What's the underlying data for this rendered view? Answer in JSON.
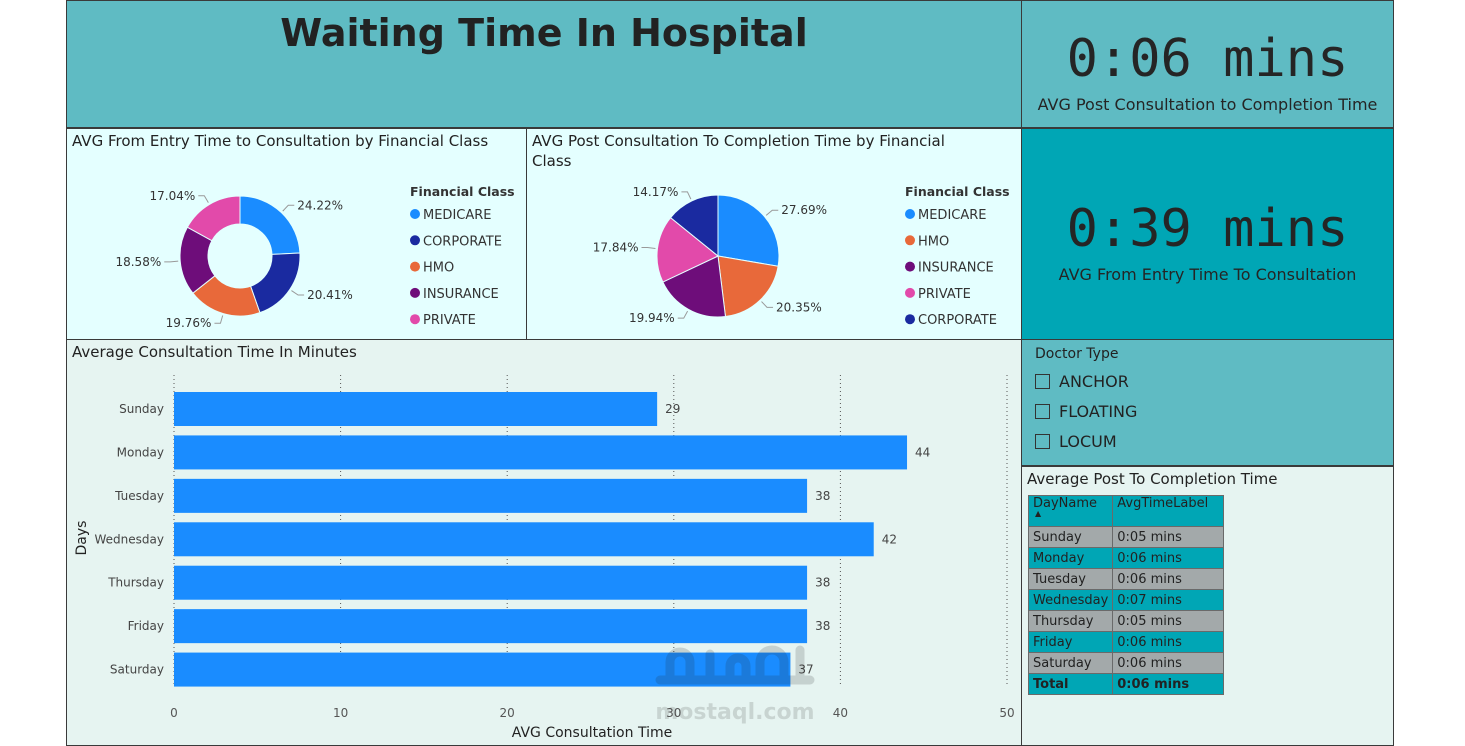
{
  "title": "Waiting Time In Hospital",
  "kpis": {
    "post_consult": {
      "value": "0:06 mins",
      "label": "AVG Post Consultation to Completion Time"
    },
    "entry_consult": {
      "value": "0:39 mins",
      "label": "AVG From Entry Time To Consultation"
    }
  },
  "colors": {
    "medicare": "#1a8cff",
    "corporate": "#1a2aa0",
    "hmo": "#e8693a",
    "insurance": "#6e0d7a",
    "private": "#e24aaa",
    "bar": "#1a8cff"
  },
  "chart_data": [
    {
      "type": "pie",
      "variant": "donut",
      "title": "AVG From Entry Time to Consultation by Financial Class",
      "legend_title": "Financial Class",
      "legend_placement": "right",
      "slices": [
        {
          "name": "MEDICARE",
          "value": 24.22,
          "label": "24.22%",
          "color": "#1a8cff"
        },
        {
          "name": "CORPORATE",
          "value": 20.41,
          "label": "20.41%",
          "color": "#1a2aa0"
        },
        {
          "name": "HMO",
          "value": 19.76,
          "label": "19.76%",
          "color": "#e8693a"
        },
        {
          "name": "INSURANCE",
          "value": 18.58,
          "label": "18.58%",
          "color": "#6e0d7a"
        },
        {
          "name": "PRIVATE",
          "value": 17.04,
          "label": "17.04%",
          "color": "#e24aaa"
        }
      ]
    },
    {
      "type": "pie",
      "title": "AVG Post Consultation To Completion Time by Financial Class",
      "legend_title": "Financial Class",
      "legend_placement": "right",
      "slices": [
        {
          "name": "MEDICARE",
          "value": 27.69,
          "label": "27.69%",
          "color": "#1a8cff"
        },
        {
          "name": "HMO",
          "value": 20.35,
          "label": "20.35%",
          "color": "#e8693a"
        },
        {
          "name": "INSURANCE",
          "value": 19.94,
          "label": "19.94%",
          "color": "#6e0d7a"
        },
        {
          "name": "PRIVATE",
          "value": 17.84,
          "label": "17.84%",
          "color": "#e24aaa"
        },
        {
          "name": "CORPORATE",
          "value": 14.17,
          "label": "14.17%",
          "color": "#1a2aa0"
        }
      ]
    },
    {
      "type": "bar",
      "orientation": "horizontal",
      "title": "Average Consultation Time In Minutes",
      "xlabel": "AVG Consultation Time",
      "ylabel": "Days",
      "categories": [
        "Sunday",
        "Monday",
        "Tuesday",
        "Wednesday",
        "Thursday",
        "Friday",
        "Saturday"
      ],
      "values": [
        29,
        44,
        38,
        42,
        38,
        38,
        37
      ],
      "data_labels": [
        "29",
        "44",
        "38",
        "42",
        "38",
        "38",
        "37"
      ],
      "xlim": [
        0,
        50
      ],
      "xticks": [
        0,
        10,
        20,
        30,
        40,
        50
      ],
      "xtick_labels": [
        "0",
        "10",
        "20",
        "30",
        "40",
        "50"
      ],
      "grid": "vertical dotted"
    },
    {
      "type": "table",
      "title": "Average Post To Completion Time",
      "columns": [
        "DayName",
        "AvgTimeLabel"
      ],
      "rows": [
        [
          "Sunday",
          "0:05 mins"
        ],
        [
          "Monday",
          "0:06 mins"
        ],
        [
          "Tuesday",
          "0:06 mins"
        ],
        [
          "Wednesday",
          "0:07 mins"
        ],
        [
          "Thursday",
          "0:05 mins"
        ],
        [
          "Friday",
          "0:06 mins"
        ],
        [
          "Saturday",
          "0:06 mins"
        ]
      ],
      "total": [
        "Total",
        "0:06 mins"
      ]
    }
  ],
  "slicer": {
    "title": "Doctor Type",
    "options": [
      "ANCHOR",
      "FLOATING",
      "LOCUM"
    ]
  },
  "watermark": {
    "text": "mostaql.com"
  }
}
